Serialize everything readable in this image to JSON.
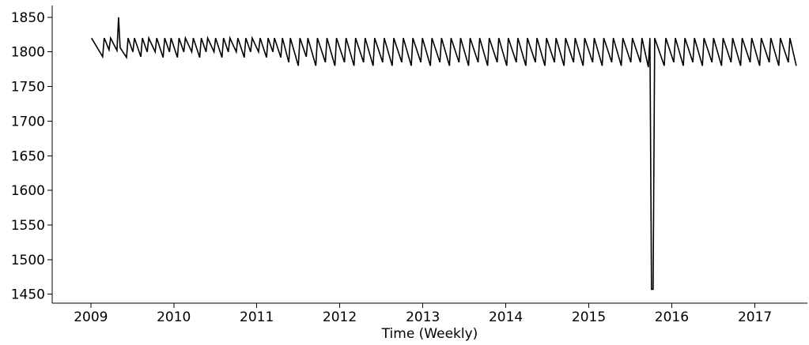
{
  "chart_data": {
    "type": "line",
    "title": "",
    "xlabel": "Time (Weekly)",
    "ylabel": "",
    "x_type": "date",
    "xlim": [
      "2008-07-15",
      "2017-08-20"
    ],
    "ylim": [
      1437,
      1867
    ],
    "x_ticks": [
      "2009-01-01",
      "2010-01-01",
      "2011-01-01",
      "2012-01-01",
      "2013-01-01",
      "2014-01-01",
      "2015-01-01",
      "2016-01-01",
      "2017-01-01"
    ],
    "x_tick_labels": [
      "2009",
      "2010",
      "2011",
      "2012",
      "2013",
      "2014",
      "2015",
      "2016",
      "2017"
    ],
    "y_ticks": [
      1450,
      1500,
      1550,
      1600,
      1650,
      1700,
      1750,
      1800,
      1850
    ],
    "y_tick_labels": [
      "1450",
      "1500",
      "1550",
      "1600",
      "1650",
      "1700",
      "1750",
      "1800",
      "1850"
    ],
    "grid": false,
    "legend": "none",
    "spines": [
      "left",
      "bottom"
    ],
    "series": [
      {
        "color": "#000000",
        "points": [
          [
            "2009-01-04",
            1820
          ],
          [
            "2009-02-22",
            1793
          ],
          [
            "2009-03-01",
            1820
          ],
          [
            "2009-03-22",
            1803
          ],
          [
            "2009-03-29",
            1820
          ],
          [
            "2009-04-26",
            1802
          ],
          [
            "2009-05-03",
            1850
          ],
          [
            "2009-05-10",
            1806
          ],
          [
            "2009-06-07",
            1792
          ],
          [
            "2009-06-14",
            1820
          ],
          [
            "2009-07-05",
            1800
          ],
          [
            "2009-07-12",
            1820
          ],
          [
            "2009-08-09",
            1793
          ],
          [
            "2009-08-16",
            1820
          ],
          [
            "2009-09-06",
            1800
          ],
          [
            "2009-09-13",
            1820
          ],
          [
            "2009-10-11",
            1800
          ],
          [
            "2009-10-18",
            1820
          ],
          [
            "2009-11-15",
            1792
          ],
          [
            "2009-11-22",
            1820
          ],
          [
            "2009-12-13",
            1800
          ],
          [
            "2009-12-20",
            1820
          ],
          [
            "2010-01-17",
            1792
          ],
          [
            "2010-01-24",
            1820
          ],
          [
            "2010-02-14",
            1800
          ],
          [
            "2010-02-21",
            1820
          ],
          [
            "2010-03-21",
            1800
          ],
          [
            "2010-03-28",
            1820
          ],
          [
            "2010-04-25",
            1792
          ],
          [
            "2010-05-02",
            1820
          ],
          [
            "2010-05-23",
            1800
          ],
          [
            "2010-05-30",
            1820
          ],
          [
            "2010-06-27",
            1800
          ],
          [
            "2010-07-04",
            1820
          ],
          [
            "2010-08-01",
            1792
          ],
          [
            "2010-08-08",
            1820
          ],
          [
            "2010-08-29",
            1800
          ],
          [
            "2010-09-05",
            1820
          ],
          [
            "2010-10-03",
            1800
          ],
          [
            "2010-10-10",
            1820
          ],
          [
            "2010-11-07",
            1792
          ],
          [
            "2010-11-14",
            1820
          ],
          [
            "2010-12-05",
            1800
          ],
          [
            "2010-12-12",
            1820
          ],
          [
            "2011-01-09",
            1800
          ],
          [
            "2011-01-16",
            1820
          ],
          [
            "2011-02-13",
            1792
          ],
          [
            "2011-02-20",
            1820
          ],
          [
            "2011-03-13",
            1800
          ],
          [
            "2011-03-20",
            1820
          ],
          [
            "2011-04-17",
            1792
          ],
          [
            "2011-04-24",
            1820
          ],
          [
            "2011-05-22",
            1785
          ],
          [
            "2011-05-29",
            1820
          ],
          [
            "2011-07-03",
            1780
          ],
          [
            "2011-07-10",
            1820
          ],
          [
            "2011-08-07",
            1793
          ],
          [
            "2011-08-14",
            1820
          ],
          [
            "2011-09-18",
            1780
          ],
          [
            "2011-09-25",
            1820
          ],
          [
            "2011-10-30",
            1785
          ],
          [
            "2011-11-06",
            1820
          ],
          [
            "2011-12-11",
            1780
          ],
          [
            "2011-12-18",
            1820
          ],
          [
            "2012-01-22",
            1785
          ],
          [
            "2012-01-29",
            1820
          ],
          [
            "2012-03-04",
            1780
          ],
          [
            "2012-03-11",
            1820
          ],
          [
            "2012-04-15",
            1785
          ],
          [
            "2012-04-22",
            1820
          ],
          [
            "2012-05-27",
            1780
          ],
          [
            "2012-06-03",
            1820
          ],
          [
            "2012-07-08",
            1785
          ],
          [
            "2012-07-15",
            1820
          ],
          [
            "2012-08-19",
            1780
          ],
          [
            "2012-08-26",
            1820
          ],
          [
            "2012-09-30",
            1785
          ],
          [
            "2012-10-07",
            1820
          ],
          [
            "2012-11-11",
            1780
          ],
          [
            "2012-11-18",
            1820
          ],
          [
            "2012-12-23",
            1785
          ],
          [
            "2012-12-30",
            1820
          ],
          [
            "2013-02-03",
            1780
          ],
          [
            "2013-02-10",
            1820
          ],
          [
            "2013-03-17",
            1785
          ],
          [
            "2013-03-24",
            1820
          ],
          [
            "2013-04-28",
            1780
          ],
          [
            "2013-05-05",
            1820
          ],
          [
            "2013-06-09",
            1785
          ],
          [
            "2013-06-16",
            1820
          ],
          [
            "2013-07-21",
            1780
          ],
          [
            "2013-07-28",
            1820
          ],
          [
            "2013-09-01",
            1785
          ],
          [
            "2013-09-08",
            1820
          ],
          [
            "2013-10-13",
            1780
          ],
          [
            "2013-10-20",
            1820
          ],
          [
            "2013-11-24",
            1785
          ],
          [
            "2013-12-01",
            1820
          ],
          [
            "2014-01-05",
            1780
          ],
          [
            "2014-01-12",
            1820
          ],
          [
            "2014-02-16",
            1785
          ],
          [
            "2014-02-23",
            1820
          ],
          [
            "2014-03-30",
            1780
          ],
          [
            "2014-04-06",
            1820
          ],
          [
            "2014-05-11",
            1785
          ],
          [
            "2014-05-18",
            1820
          ],
          [
            "2014-06-22",
            1780
          ],
          [
            "2014-06-29",
            1820
          ],
          [
            "2014-08-03",
            1785
          ],
          [
            "2014-08-10",
            1820
          ],
          [
            "2014-09-14",
            1780
          ],
          [
            "2014-09-21",
            1820
          ],
          [
            "2014-10-26",
            1785
          ],
          [
            "2014-11-02",
            1820
          ],
          [
            "2014-12-07",
            1780
          ],
          [
            "2014-12-14",
            1820
          ],
          [
            "2015-01-18",
            1785
          ],
          [
            "2015-01-25",
            1820
          ],
          [
            "2015-03-01",
            1780
          ],
          [
            "2015-03-08",
            1820
          ],
          [
            "2015-04-12",
            1785
          ],
          [
            "2015-04-19",
            1820
          ],
          [
            "2015-05-24",
            1780
          ],
          [
            "2015-05-31",
            1820
          ],
          [
            "2015-07-05",
            1785
          ],
          [
            "2015-07-12",
            1820
          ],
          [
            "2015-08-16",
            1785
          ],
          [
            "2015-08-23",
            1820
          ],
          [
            "2015-09-20",
            1778
          ],
          [
            "2015-09-27",
            1820
          ],
          [
            "2015-10-04",
            1457
          ],
          [
            "2015-10-11",
            1457
          ],
          [
            "2015-10-18",
            1820
          ],
          [
            "2015-11-29",
            1780
          ],
          [
            "2015-12-06",
            1820
          ],
          [
            "2016-01-10",
            1785
          ],
          [
            "2016-01-17",
            1820
          ],
          [
            "2016-02-21",
            1780
          ],
          [
            "2016-02-28",
            1820
          ],
          [
            "2016-04-03",
            1785
          ],
          [
            "2016-04-10",
            1820
          ],
          [
            "2016-05-15",
            1780
          ],
          [
            "2016-05-22",
            1820
          ],
          [
            "2016-06-26",
            1785
          ],
          [
            "2016-07-03",
            1820
          ],
          [
            "2016-08-07",
            1780
          ],
          [
            "2016-08-14",
            1820
          ],
          [
            "2016-09-18",
            1785
          ],
          [
            "2016-09-25",
            1820
          ],
          [
            "2016-10-30",
            1780
          ],
          [
            "2016-11-06",
            1820
          ],
          [
            "2016-12-11",
            1785
          ],
          [
            "2016-12-18",
            1820
          ],
          [
            "2017-01-22",
            1780
          ],
          [
            "2017-01-29",
            1820
          ],
          [
            "2017-03-05",
            1785
          ],
          [
            "2017-03-12",
            1820
          ],
          [
            "2017-04-16",
            1780
          ],
          [
            "2017-04-23",
            1820
          ],
          [
            "2017-05-28",
            1785
          ],
          [
            "2017-06-04",
            1820
          ],
          [
            "2017-07-02",
            1780
          ]
        ]
      }
    ]
  }
}
